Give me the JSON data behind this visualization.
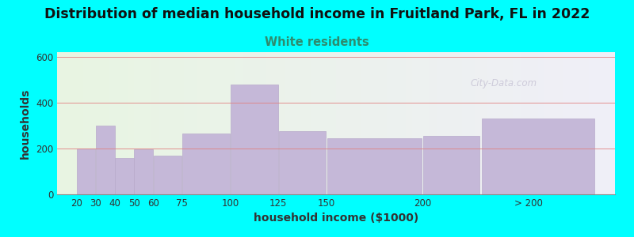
{
  "title": "Distribution of median household income in Fruitland Park, FL in 2022",
  "subtitle": "White residents",
  "xlabel": "household income ($1000)",
  "ylabel": "households",
  "background_outer": "#00FFFF",
  "background_inner_left": "#e8f5e2",
  "background_inner_right": "#f0eff8",
  "bar_color": "#c5b8d8",
  "bar_edge_color": "#b8aacb",
  "title_fontsize": 12.5,
  "subtitle_fontsize": 10.5,
  "subtitle_color": "#2e8b6e",
  "xlabel_fontsize": 10,
  "ylabel_fontsize": 10,
  "tick_fontsize": 8.5,
  "categories": [
    "20",
    "30",
    "40",
    "50",
    "60",
    "75",
    "100",
    "125",
    "150",
    "200",
    "> 200"
  ],
  "values": [
    200,
    300,
    160,
    195,
    170,
    265,
    480,
    275,
    245,
    255,
    330
  ],
  "bar_lefts": [
    20,
    30,
    40,
    50,
    60,
    75,
    100,
    125,
    150,
    200,
    230
  ],
  "bar_rights": [
    30,
    40,
    50,
    60,
    75,
    100,
    125,
    150,
    200,
    230,
    290
  ],
  "tick_positions": [
    20,
    30,
    40,
    50,
    60,
    75,
    100,
    125,
    150,
    200,
    255
  ],
  "yticks": [
    0,
    200,
    400,
    600
  ],
  "ylim": [
    0,
    620
  ],
  "xlim": [
    10,
    300
  ],
  "watermark": "City-Data.com",
  "grid_color": "#e08080",
  "grid_linewidth": 0.6
}
